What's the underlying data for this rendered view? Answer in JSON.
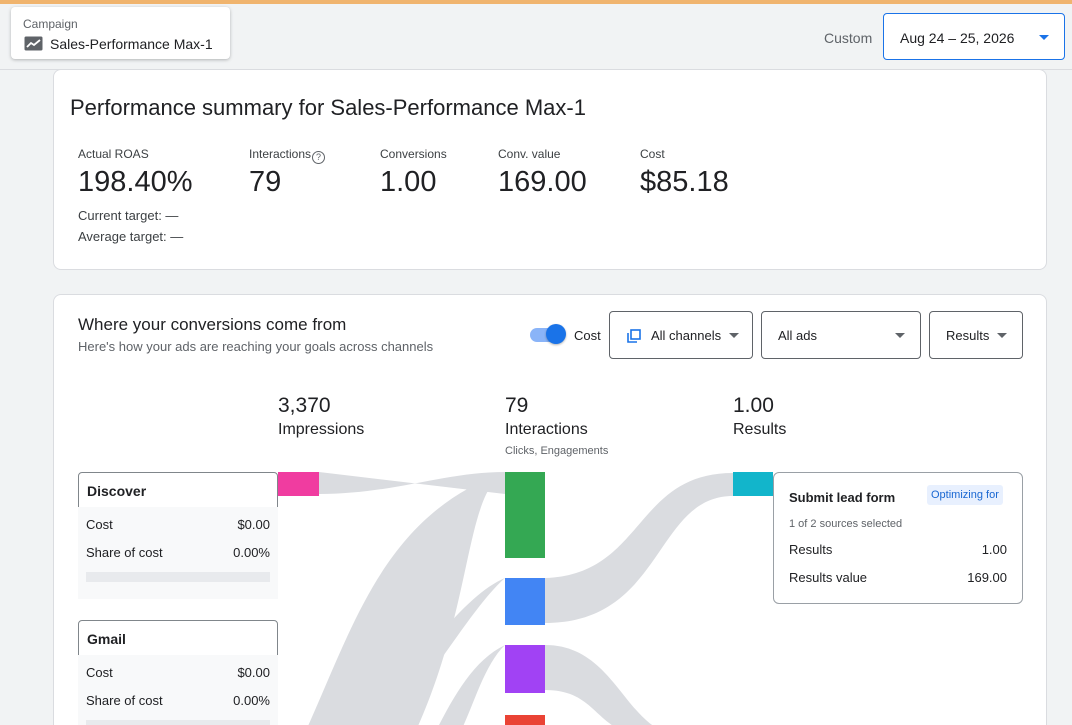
{
  "header": {
    "campaign_label": "Campaign",
    "campaign_name": "Sales-Performance Max-1",
    "campaign_icon": "trend-chart-icon",
    "range_label": "Custom",
    "date_range": "Aug 24 – 25, 2026"
  },
  "summary": {
    "title": "Performance summary for Sales-Performance Max-1",
    "metrics": [
      {
        "label": "Actual ROAS",
        "value": "198.40%"
      },
      {
        "label": "Interactions",
        "value": "79"
      },
      {
        "label": "Conversions",
        "value": "1.00"
      },
      {
        "label": "Conv. value",
        "value": "169.00"
      },
      {
        "label": "Cost",
        "value": "$85.18"
      }
    ],
    "current_target": "Current target: —",
    "average_target": "Average target: —"
  },
  "conversions": {
    "title": "Where your conversions come from",
    "subtitle": "Here's how your ads are reaching your goals across channels",
    "cost_toggle_label": "Cost",
    "cost_toggle_on": true,
    "channels_filter": "All channels",
    "ads_filter": "All ads",
    "results_filter": "Results",
    "stages": [
      {
        "value": "3,370",
        "label": "Impressions",
        "sub": ""
      },
      {
        "value": "79",
        "label": "Interactions",
        "sub": "Clicks, Engagements"
      },
      {
        "value": "1.00",
        "label": "Results",
        "sub": ""
      }
    ],
    "channels": [
      {
        "name": "Discover",
        "cost_label": "Cost",
        "cost": "$0.00",
        "share_label": "Share of cost",
        "share": "0.00%",
        "color": "#f03ca0"
      },
      {
        "name": "Gmail",
        "cost_label": "Cost",
        "cost": "$0.00",
        "share_label": "Share of cost",
        "share": "0.00%",
        "color": "#f03ca0"
      }
    ],
    "interaction_colors": [
      "#34a853",
      "#4285f4",
      "#a142f4",
      "#ea4335"
    ],
    "result_color": "#12b5cb",
    "result_card": {
      "title": "Submit lead form",
      "badge": "Optimizing for",
      "sources": "1 of 2 sources selected",
      "results_label": "Results",
      "results_value": "1.00",
      "results_value_label": "Results value",
      "results_value_amount": "169.00"
    }
  }
}
